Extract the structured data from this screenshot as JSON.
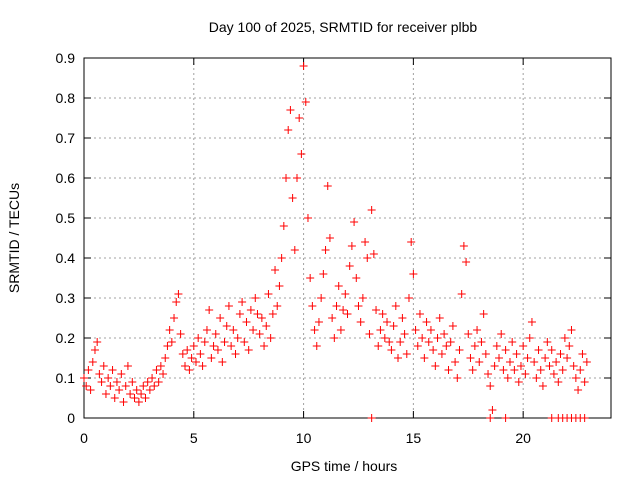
{
  "chart_data": {
    "type": "scatter",
    "title": "Day 100 of 2025, SRMTID for receiver plbb",
    "xlabel": "GPS time / hours",
    "ylabel": "SRMTID / TECUs",
    "xlim": [
      0,
      24
    ],
    "ylim": [
      0,
      0.9
    ],
    "xticks": [
      0,
      5,
      10,
      15,
      20
    ],
    "yticks": [
      0,
      0.1,
      0.2,
      0.3,
      0.4,
      0.5,
      0.6,
      0.7,
      0.8,
      0.9
    ],
    "grid": true,
    "marker": "+",
    "color": "#ff0000",
    "series": [
      {
        "name": "SRMTID",
        "points": [
          [
            0.0,
            0.1
          ],
          [
            0.1,
            0.08
          ],
          [
            0.2,
            0.12
          ],
          [
            0.3,
            0.07
          ],
          [
            0.4,
            0.14
          ],
          [
            0.5,
            0.17
          ],
          [
            0.6,
            0.19
          ],
          [
            0.7,
            0.11
          ],
          [
            0.8,
            0.09
          ],
          [
            0.9,
            0.13
          ],
          [
            1.0,
            0.06
          ],
          [
            1.1,
            0.1
          ],
          [
            1.2,
            0.08
          ],
          [
            1.3,
            0.12
          ],
          [
            1.4,
            0.05
          ],
          [
            1.5,
            0.09
          ],
          [
            1.6,
            0.07
          ],
          [
            1.7,
            0.11
          ],
          [
            1.8,
            0.04
          ],
          [
            1.9,
            0.08
          ],
          [
            2.0,
            0.13
          ],
          [
            2.1,
            0.06
          ],
          [
            2.2,
            0.09
          ],
          [
            2.3,
            0.05
          ],
          [
            2.4,
            0.07
          ],
          [
            2.5,
            0.04
          ],
          [
            2.6,
            0.06
          ],
          [
            2.7,
            0.08
          ],
          [
            2.8,
            0.05
          ],
          [
            2.9,
            0.09
          ],
          [
            3.0,
            0.07
          ],
          [
            3.1,
            0.1
          ],
          [
            3.2,
            0.08
          ],
          [
            3.3,
            0.12
          ],
          [
            3.4,
            0.09
          ],
          [
            3.5,
            0.13
          ],
          [
            3.6,
            0.11
          ],
          [
            3.7,
            0.15
          ],
          [
            3.8,
            0.18
          ],
          [
            3.9,
            0.22
          ],
          [
            4.0,
            0.19
          ],
          [
            4.1,
            0.25
          ],
          [
            4.2,
            0.29
          ],
          [
            4.3,
            0.31
          ],
          [
            4.4,
            0.21
          ],
          [
            4.5,
            0.16
          ],
          [
            4.6,
            0.13
          ],
          [
            4.7,
            0.17
          ],
          [
            4.8,
            0.12
          ],
          [
            4.9,
            0.15
          ],
          [
            5.0,
            0.18
          ],
          [
            5.1,
            0.14
          ],
          [
            5.2,
            0.2
          ],
          [
            5.3,
            0.16
          ],
          [
            5.4,
            0.13
          ],
          [
            5.5,
            0.19
          ],
          [
            5.6,
            0.22
          ],
          [
            5.7,
            0.27
          ],
          [
            5.8,
            0.15
          ],
          [
            5.9,
            0.18
          ],
          [
            6.0,
            0.21
          ],
          [
            6.1,
            0.17
          ],
          [
            6.2,
            0.25
          ],
          [
            6.3,
            0.14
          ],
          [
            6.4,
            0.19
          ],
          [
            6.5,
            0.23
          ],
          [
            6.6,
            0.28
          ],
          [
            6.7,
            0.18
          ],
          [
            6.8,
            0.22
          ],
          [
            6.9,
            0.16
          ],
          [
            7.0,
            0.2
          ],
          [
            7.1,
            0.26
          ],
          [
            7.2,
            0.29
          ],
          [
            7.3,
            0.19
          ],
          [
            7.4,
            0.24
          ],
          [
            7.5,
            0.17
          ],
          [
            7.6,
            0.27
          ],
          [
            7.7,
            0.22
          ],
          [
            7.8,
            0.3
          ],
          [
            7.9,
            0.26
          ],
          [
            8.0,
            0.21
          ],
          [
            8.1,
            0.25
          ],
          [
            8.2,
            0.18
          ],
          [
            8.3,
            0.23
          ],
          [
            8.4,
            0.31
          ],
          [
            8.5,
            0.2
          ],
          [
            8.6,
            0.26
          ],
          [
            8.7,
            0.37
          ],
          [
            8.8,
            0.28
          ],
          [
            8.9,
            0.33
          ],
          [
            9.0,
            0.4
          ],
          [
            9.1,
            0.48
          ],
          [
            9.2,
            0.6
          ],
          [
            9.3,
            0.72
          ],
          [
            9.4,
            0.77
          ],
          [
            9.5,
            0.55
          ],
          [
            9.6,
            0.42
          ],
          [
            9.7,
            0.6
          ],
          [
            9.8,
            0.75
          ],
          [
            9.9,
            0.66
          ],
          [
            10.0,
            0.88
          ],
          [
            10.1,
            0.79
          ],
          [
            10.2,
            0.5
          ],
          [
            10.3,
            0.35
          ],
          [
            10.4,
            0.28
          ],
          [
            10.5,
            0.22
          ],
          [
            10.6,
            0.18
          ],
          [
            10.7,
            0.24
          ],
          [
            10.8,
            0.3
          ],
          [
            10.9,
            0.36
          ],
          [
            11.0,
            0.42
          ],
          [
            11.1,
            0.58
          ],
          [
            11.2,
            0.45
          ],
          [
            11.3,
            0.25
          ],
          [
            11.4,
            0.2
          ],
          [
            11.5,
            0.28
          ],
          [
            11.6,
            0.33
          ],
          [
            11.7,
            0.22
          ],
          [
            11.8,
            0.27
          ],
          [
            11.9,
            0.31
          ],
          [
            12.0,
            0.26
          ],
          [
            12.1,
            0.38
          ],
          [
            12.2,
            0.43
          ],
          [
            12.3,
            0.49
          ],
          [
            12.4,
            0.35
          ],
          [
            12.5,
            0.28
          ],
          [
            12.6,
            0.24
          ],
          [
            12.7,
            0.3
          ],
          [
            12.8,
            0.44
          ],
          [
            12.9,
            0.4
          ],
          [
            13.0,
            0.21
          ],
          [
            13.1,
            0.52
          ],
          [
            13.2,
            0.41
          ],
          [
            13.3,
            0.27
          ],
          [
            13.4,
            0.18
          ],
          [
            13.5,
            0.22
          ],
          [
            13.6,
            0.26
          ],
          [
            13.7,
            0.2
          ],
          [
            13.8,
            0.24
          ],
          [
            13.9,
            0.19
          ],
          [
            14.0,
            0.17
          ],
          [
            14.1,
            0.23
          ],
          [
            14.2,
            0.28
          ],
          [
            14.3,
            0.15
          ],
          [
            14.4,
            0.19
          ],
          [
            14.5,
            0.25
          ],
          [
            14.6,
            0.21
          ],
          [
            14.7,
            0.16
          ],
          [
            14.8,
            0.3
          ],
          [
            14.9,
            0.44
          ],
          [
            15.0,
            0.36
          ],
          [
            15.1,
            0.22
          ],
          [
            15.2,
            0.18
          ],
          [
            15.3,
            0.26
          ],
          [
            15.4,
            0.2
          ],
          [
            15.5,
            0.15
          ],
          [
            15.6,
            0.24
          ],
          [
            15.7,
            0.19
          ],
          [
            15.8,
            0.22
          ],
          [
            15.9,
            0.17
          ],
          [
            16.0,
            0.13
          ],
          [
            16.1,
            0.2
          ],
          [
            16.2,
            0.25
          ],
          [
            16.3,
            0.16
          ],
          [
            16.4,
            0.21
          ],
          [
            16.5,
            0.18
          ],
          [
            16.6,
            0.12
          ],
          [
            16.7,
            0.19
          ],
          [
            16.8,
            0.23
          ],
          [
            16.9,
            0.14
          ],
          [
            17.0,
            0.1
          ],
          [
            17.1,
            0.17
          ],
          [
            17.2,
            0.31
          ],
          [
            17.3,
            0.43
          ],
          [
            17.4,
            0.39
          ],
          [
            17.5,
            0.21
          ],
          [
            17.6,
            0.15
          ],
          [
            17.7,
            0.12
          ],
          [
            17.8,
            0.18
          ],
          [
            17.9,
            0.22
          ],
          [
            18.0,
            0.14
          ],
          [
            18.1,
            0.19
          ],
          [
            18.2,
            0.26
          ],
          [
            18.3,
            0.16
          ],
          [
            18.4,
            0.11
          ],
          [
            18.5,
            0.08
          ],
          [
            18.6,
            0.02
          ],
          [
            18.7,
            0.13
          ],
          [
            18.8,
            0.18
          ],
          [
            18.9,
            0.15
          ],
          [
            19.0,
            0.21
          ],
          [
            19.1,
            0.12
          ],
          [
            19.2,
            0.17
          ],
          [
            19.3,
            0.1
          ],
          [
            19.4,
            0.14
          ],
          [
            19.5,
            0.19
          ],
          [
            19.6,
            0.12
          ],
          [
            19.7,
            0.16
          ],
          [
            19.8,
            0.09
          ],
          [
            19.9,
            0.13
          ],
          [
            20.0,
            0.18
          ],
          [
            20.1,
            0.11
          ],
          [
            20.2,
            0.15
          ],
          [
            20.3,
            0.2
          ],
          [
            20.4,
            0.24
          ],
          [
            20.5,
            0.14
          ],
          [
            20.6,
            0.1
          ],
          [
            20.7,
            0.17
          ],
          [
            20.8,
            0.12
          ],
          [
            20.9,
            0.08
          ],
          [
            21.0,
            0.15
          ],
          [
            21.1,
            0.19
          ],
          [
            21.2,
            0.13
          ],
          [
            21.3,
            0.17
          ],
          [
            21.4,
            0.11
          ],
          [
            21.5,
            0.14
          ],
          [
            21.6,
            0.09
          ],
          [
            21.7,
            0.16
          ],
          [
            21.8,
            0.12
          ],
          [
            21.9,
            0.2
          ],
          [
            22.0,
            0.15
          ],
          [
            22.1,
            0.18
          ],
          [
            22.2,
            0.22
          ],
          [
            22.3,
            0.13
          ],
          [
            22.4,
            0.1
          ],
          [
            22.5,
            0.07
          ],
          [
            22.6,
            0.12
          ],
          [
            22.7,
            0.16
          ],
          [
            22.8,
            0.09
          ],
          [
            22.9,
            0.14
          ],
          [
            13.1,
            0.0
          ],
          [
            18.5,
            0.0
          ],
          [
            19.2,
            0.0
          ],
          [
            21.3,
            0.0
          ],
          [
            21.6,
            0.0
          ],
          [
            21.8,
            0.0
          ],
          [
            22.0,
            0.0
          ],
          [
            22.2,
            0.0
          ],
          [
            22.4,
            0.0
          ],
          [
            22.6,
            0.0
          ],
          [
            22.8,
            0.0
          ]
        ]
      }
    ]
  }
}
